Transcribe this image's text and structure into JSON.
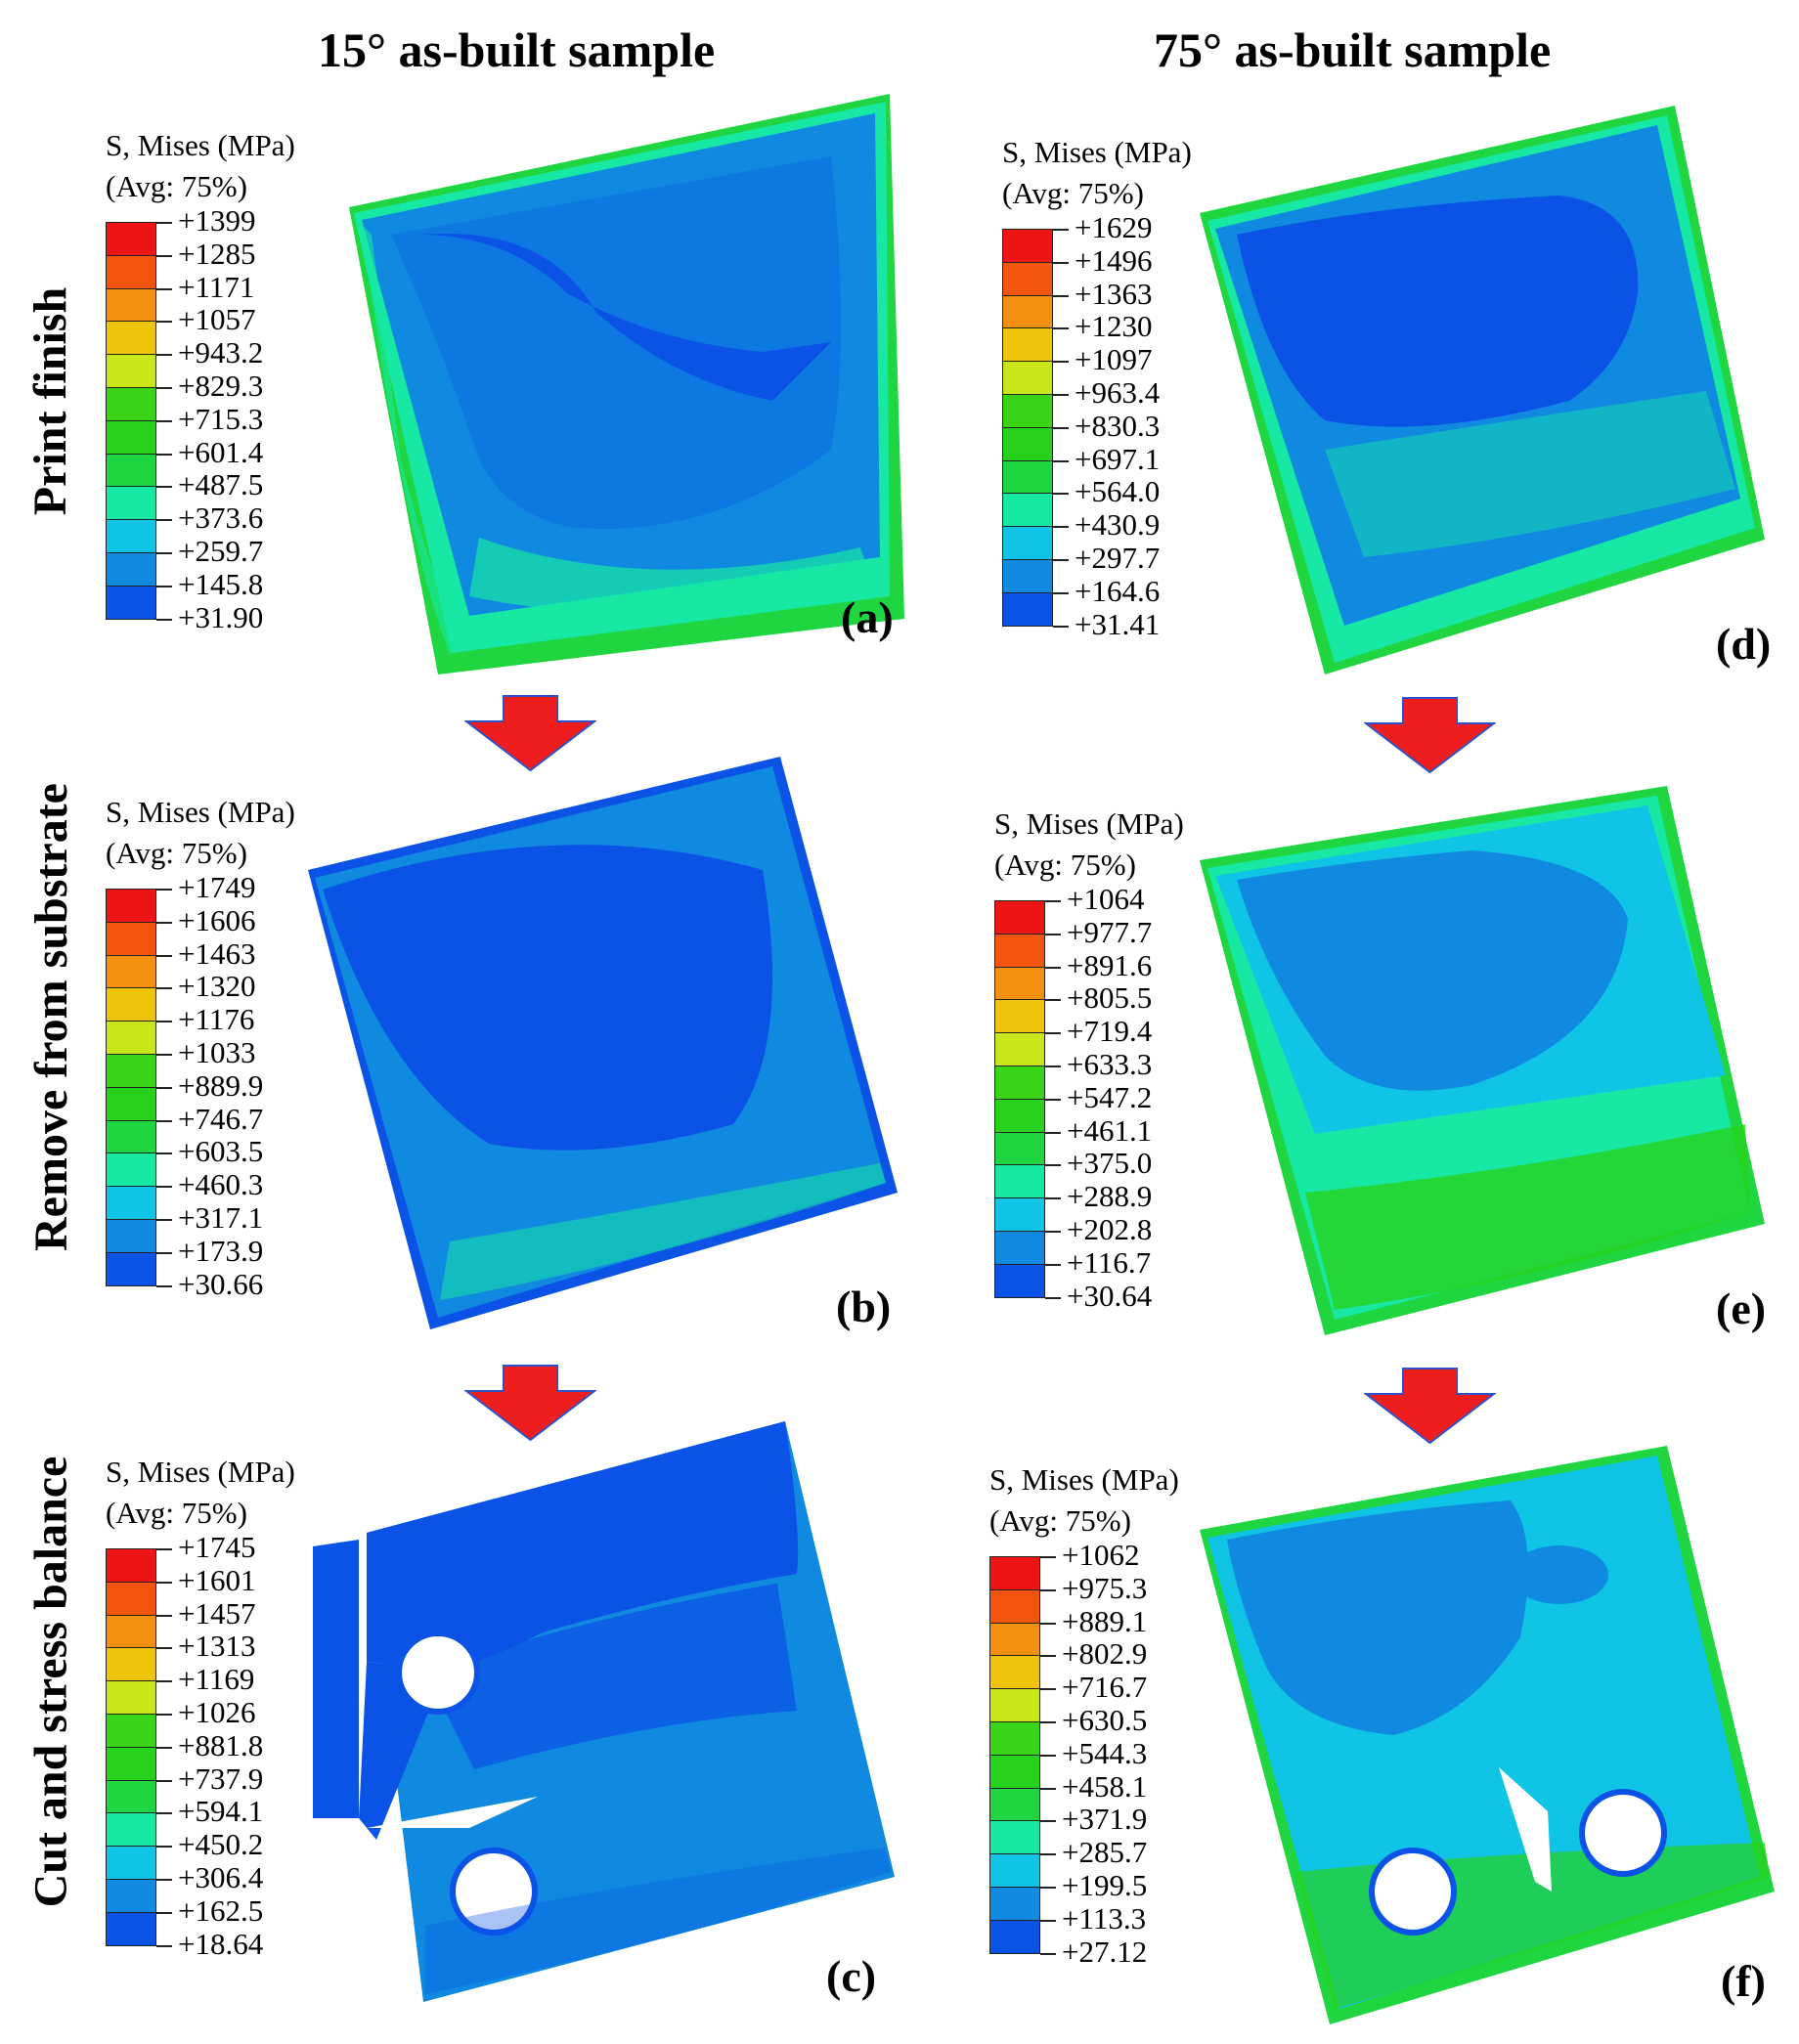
{
  "columns": {
    "left": "15° as-built sample",
    "right": "75° as-built sample"
  },
  "rows": {
    "top": "Print finish",
    "middle": "Remove from substrate",
    "bottom": "Cut and stress balance"
  },
  "legend_title": "S, Mises (MPa)",
  "legend_sub": "(Avg: 75%)",
  "palette": [
    "#0c1ff0",
    "#0b52e6",
    "#0f8ae0",
    "#10c4e6",
    "#17e8a4",
    "#1fd640",
    "#27d21d",
    "#39d415",
    "#c8e61a",
    "#f0c30c",
    "#f4900f",
    "#f2560e",
    "#ee1414"
  ],
  "panels": [
    {
      "id": "a",
      "label": "(a)",
      "values": [
        "+1399",
        "+1285",
        "+1171",
        "+1057",
        "+943.2",
        "+829.3",
        "+715.3",
        "+601.4",
        "+487.5",
        "+373.6",
        "+259.7",
        "+145.8",
        "+31.90"
      ]
    },
    {
      "id": "b",
      "label": "(b)",
      "values": [
        "+1749",
        "+1606",
        "+1463",
        "+1320",
        "+1176",
        "+1033",
        "+889.9",
        "+746.7",
        "+603.5",
        "+460.3",
        "+317.1",
        "+173.9",
        "+30.66"
      ]
    },
    {
      "id": "c",
      "label": "(c)",
      "values": [
        "+1745",
        "+1601",
        "+1457",
        "+1313",
        "+1169",
        "+1026",
        "+881.8",
        "+737.9",
        "+594.1",
        "+450.2",
        "+306.4",
        "+162.5",
        "+18.64"
      ]
    },
    {
      "id": "d",
      "label": "(d)",
      "values": [
        "+1629",
        "+1496",
        "+1363",
        "+1230",
        "+1097",
        "+963.4",
        "+830.3",
        "+697.1",
        "+564.0",
        "+430.9",
        "+297.7",
        "+164.6",
        "+31.41"
      ]
    },
    {
      "id": "e",
      "label": "(e)",
      "values": [
        "+1064",
        "+977.7",
        "+891.6",
        "+805.5",
        "+719.4",
        "+633.3",
        "+547.2",
        "+461.1",
        "+375.0",
        "+288.9",
        "+202.8",
        "+116.7",
        "+30.64"
      ]
    },
    {
      "id": "f",
      "label": "(f)",
      "values": [
        "+1062",
        "+975.3",
        "+889.1",
        "+802.9",
        "+716.7",
        "+630.5",
        "+544.3",
        "+458.1",
        "+371.9",
        "+285.7",
        "+199.5",
        "+113.3",
        "+27.12"
      ]
    }
  ]
}
